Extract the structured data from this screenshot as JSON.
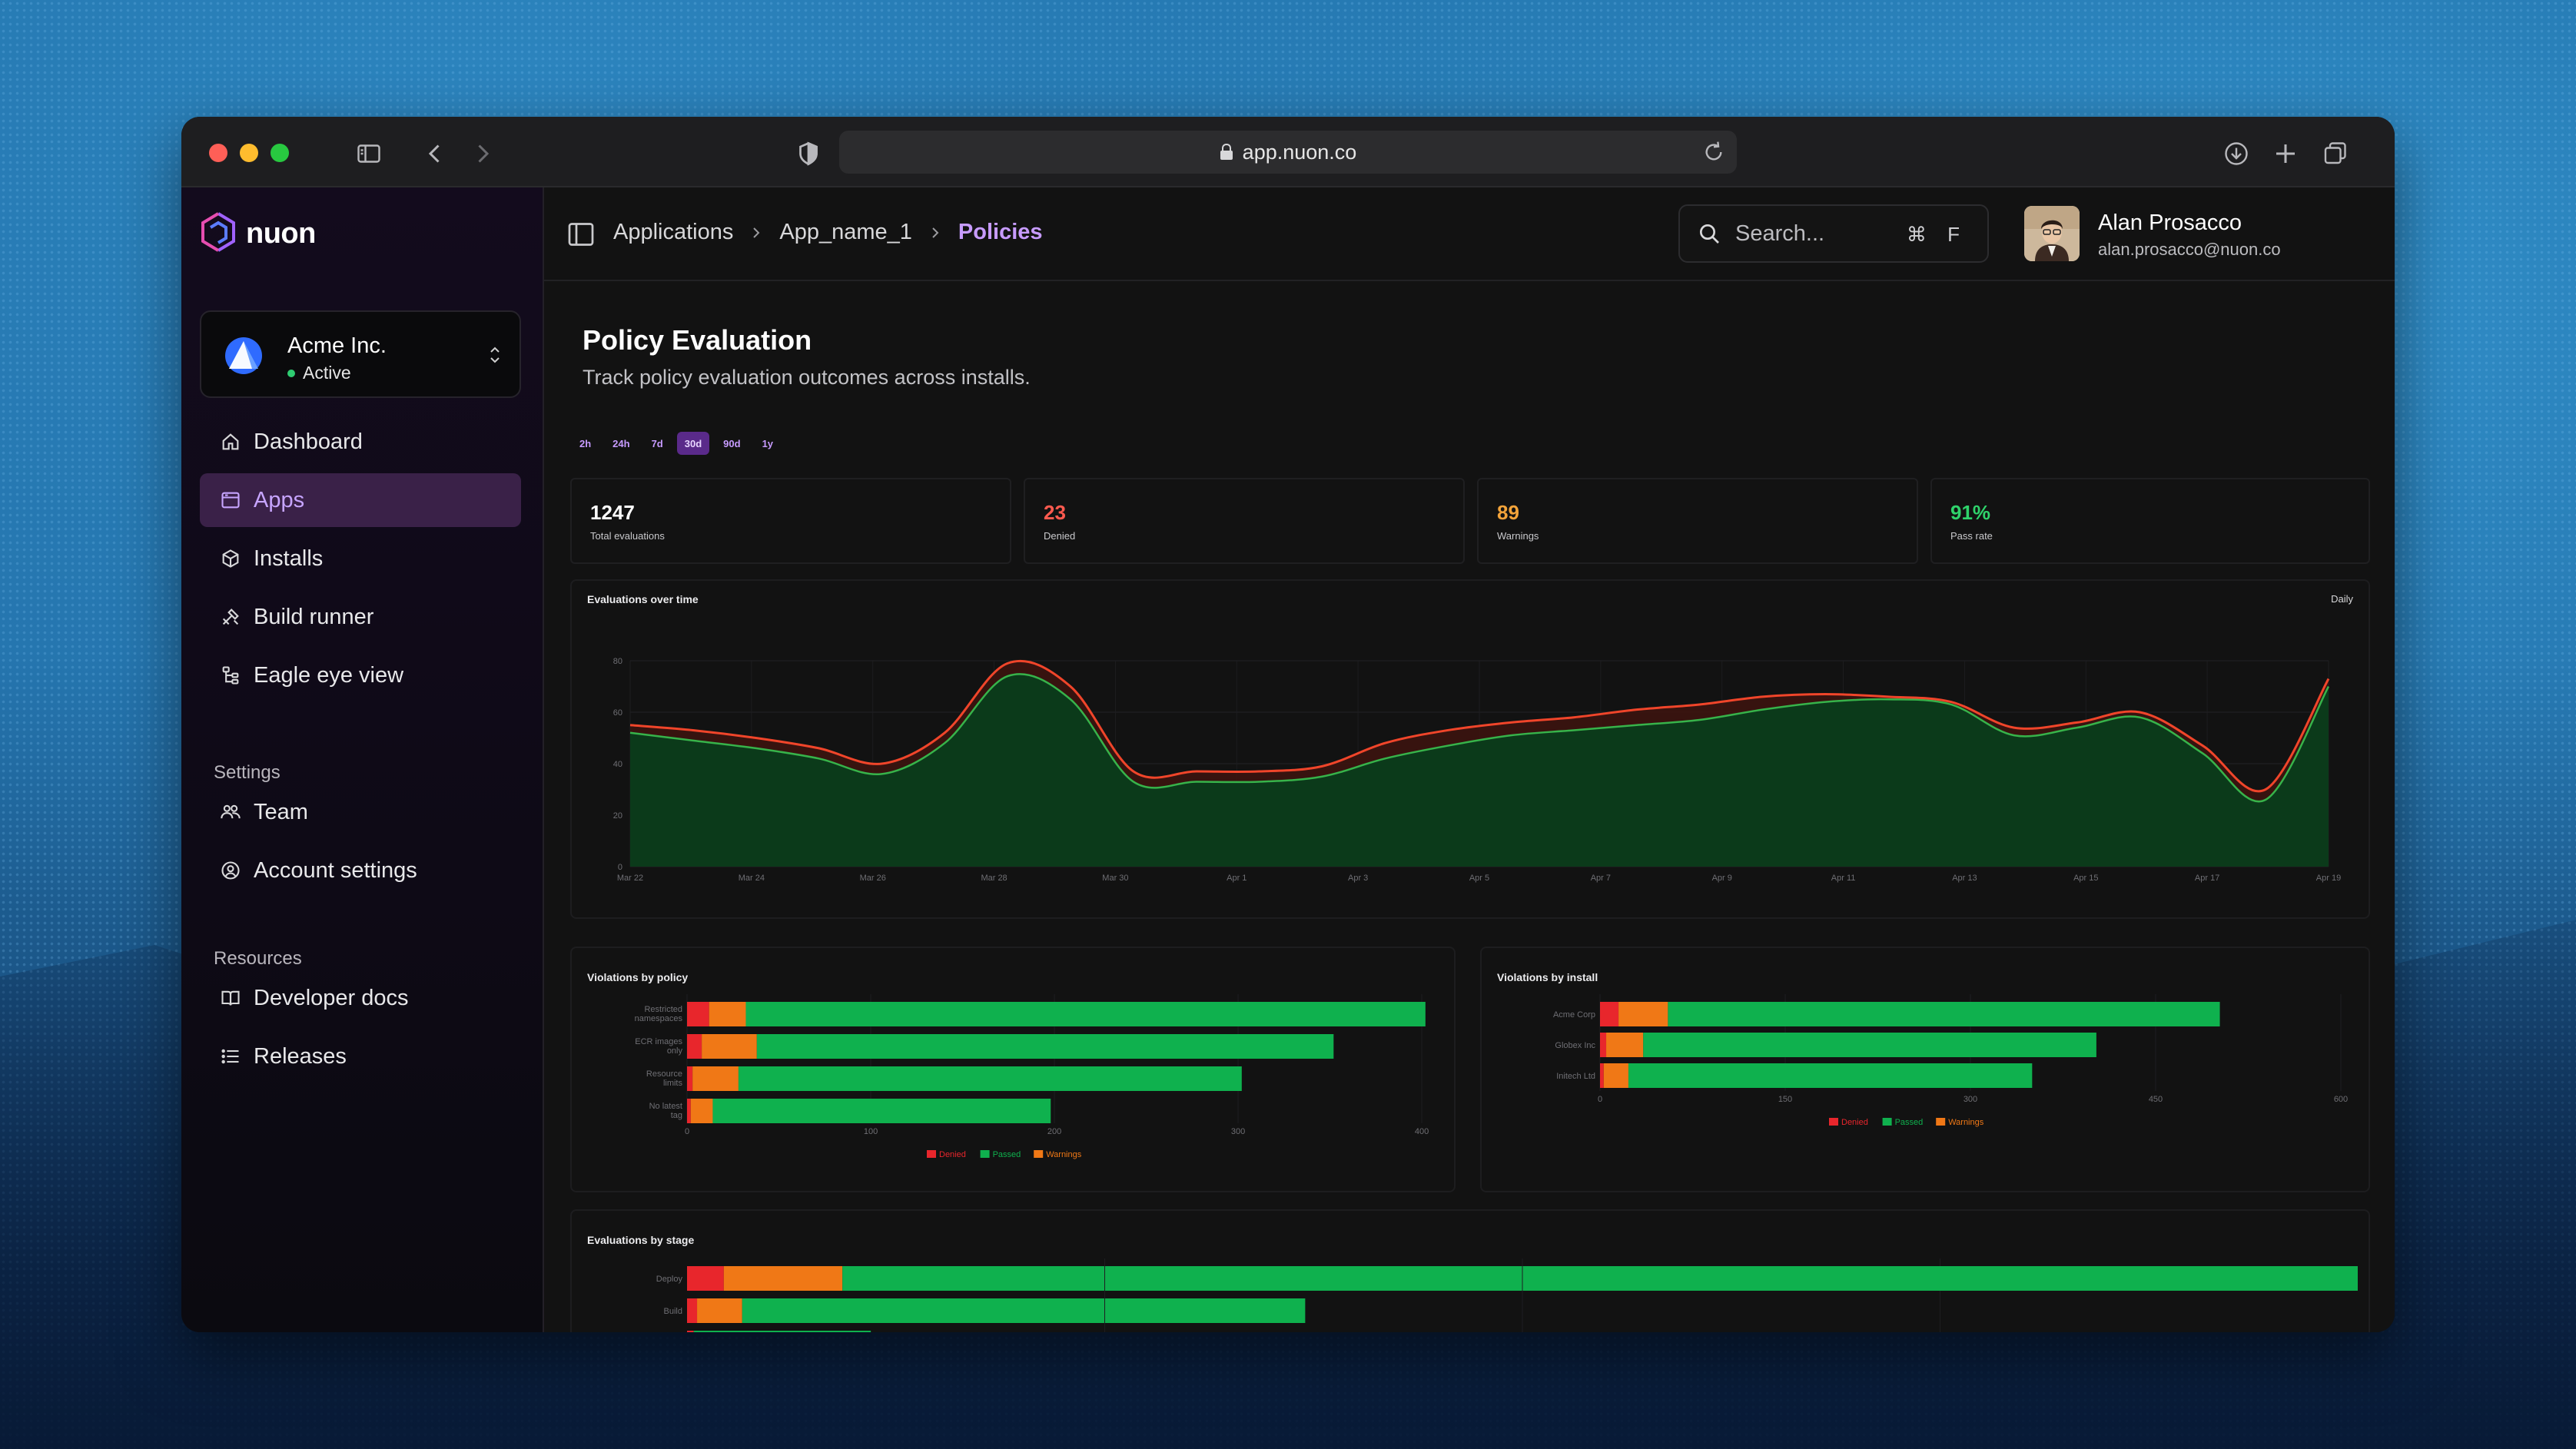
{
  "browser": {
    "url": "app.nuon.co"
  },
  "brand": {
    "name": "nuon"
  },
  "org": {
    "name": "Acme Inc.",
    "status": "Active"
  },
  "nav": {
    "main": [
      {
        "label": "Dashboard",
        "icon": "home-icon"
      },
      {
        "label": "Apps",
        "icon": "app-window-icon"
      },
      {
        "label": "Installs",
        "icon": "cube-icon"
      },
      {
        "label": "Build runner",
        "icon": "tools-icon"
      },
      {
        "label": "Eagle eye view",
        "icon": "tree-icon"
      }
    ],
    "settings_label": "Settings",
    "settings": [
      {
        "label": "Team",
        "icon": "team-icon"
      },
      {
        "label": "Account settings",
        "icon": "user-gear-icon"
      }
    ],
    "resources_label": "Resources",
    "resources": [
      {
        "label": "Developer docs",
        "icon": "book-icon"
      },
      {
        "label": "Releases",
        "icon": "list-icon"
      }
    ]
  },
  "breadcrumb": [
    "Applications",
    "App_name_1",
    "Policies"
  ],
  "search": {
    "placeholder": "Search...",
    "shortcut": "⌘ F"
  },
  "user": {
    "name": "Alan Prosacco",
    "email": "alan.prosacco@nuon.co"
  },
  "page": {
    "title": "Policy Evaluation",
    "subtitle": "Track policy evaluation outcomes across installs."
  },
  "ranges": {
    "options": [
      "2h",
      "24h",
      "7d",
      "30d",
      "90d",
      "1y"
    ],
    "selected": "30d"
  },
  "kpis": [
    {
      "value": "1247",
      "label": "Total evaluations",
      "color": "#ffffff"
    },
    {
      "value": "23",
      "label": "Denied",
      "color": "#ff5a4f"
    },
    {
      "value": "89",
      "label": "Warnings",
      "color": "#f2a33a"
    },
    {
      "value": "91%",
      "label": "Pass rate",
      "color": "#2fd36b"
    }
  ],
  "colors": {
    "denied": "#e8262c",
    "passed": "#0fb14e",
    "warnings": "#f07816"
  },
  "chart_data": [
    {
      "type": "area",
      "title": "Evaluations over time",
      "granularity": "Daily",
      "x": [
        "Mar 22",
        "Mar 23",
        "Mar 24",
        "Mar 25",
        "Mar 26",
        "Mar 27",
        "Mar 28",
        "Mar 29",
        "Mar 30",
        "Mar 31",
        "Apr 1",
        "Apr 2",
        "Apr 3",
        "Apr 4",
        "Apr 5",
        "Apr 6",
        "Apr 7",
        "Apr 8",
        "Apr 9",
        "Apr 10",
        "Apr 11",
        "Apr 12",
        "Apr 13",
        "Apr 14",
        "Apr 15",
        "Apr 16",
        "Apr 17",
        "Apr 18"
      ],
      "x_ticks": [
        "Mar 22",
        "Mar 24",
        "Mar 26",
        "Mar 28",
        "Mar 30",
        "Apr 1",
        "Apr 3",
        "Apr 5",
        "Apr 7",
        "Apr 9",
        "Apr 11",
        "Apr 13",
        "Apr 15",
        "Apr 17",
        "Apr 19"
      ],
      "y_ticks": [
        0,
        20,
        40,
        60,
        80
      ],
      "ylim": [
        0,
        80
      ],
      "series": [
        {
          "name": "Passed",
          "values": [
            52,
            49,
            46,
            42,
            36,
            48,
            74,
            65,
            33,
            33,
            33,
            35,
            42,
            47,
            51,
            53,
            55,
            57,
            61,
            64,
            65,
            63,
            51,
            54,
            58,
            44,
            26,
            70
          ]
        },
        {
          "name": "Total",
          "values": [
            55,
            53,
            50,
            46,
            40,
            52,
            79,
            70,
            37,
            37,
            37,
            39,
            48,
            53,
            56,
            58,
            61,
            63,
            66,
            67,
            66,
            64,
            54,
            56,
            60,
            47,
            30,
            73
          ]
        }
      ]
    },
    {
      "type": "bar",
      "title": "Violations by policy",
      "orientation": "horizontal",
      "stacked": true,
      "categories": [
        "Restricted namespaces",
        "ECR images only",
        "Resource limits",
        "No latest tag"
      ],
      "x_ticks": [
        0,
        100,
        200,
        300,
        400
      ],
      "xlim": [
        0,
        405
      ],
      "series": [
        {
          "name": "Denied",
          "values": [
            12,
            8,
            3,
            2
          ]
        },
        {
          "name": "Warnings",
          "values": [
            20,
            30,
            25,
            12
          ]
        },
        {
          "name": "Passed",
          "values": [
            370,
            314,
            274,
            184
          ]
        }
      ]
    },
    {
      "type": "bar",
      "title": "Violations by install",
      "orientation": "horizontal",
      "stacked": true,
      "categories": [
        "Acme Corp",
        "Globex Inc",
        "Initech Ltd"
      ],
      "x_ticks": [
        0,
        150,
        300,
        450,
        600
      ],
      "xlim": [
        0,
        600
      ],
      "series": [
        {
          "name": "Denied",
          "values": [
            15,
            5,
            3
          ]
        },
        {
          "name": "Warnings",
          "values": [
            40,
            30,
            20
          ]
        },
        {
          "name": "Passed",
          "values": [
            447,
            367,
            327
          ]
        }
      ]
    },
    {
      "type": "bar",
      "title": "Evaluations by stage",
      "orientation": "horizontal",
      "stacked": true,
      "categories": [
        "Deploy",
        "Build",
        ""
      ],
      "xlim": [
        0,
        1000
      ],
      "series": [
        {
          "name": "Denied",
          "values": [
            22,
            6,
            4
          ]
        },
        {
          "name": "Warnings",
          "values": [
            71,
            27,
            0
          ]
        },
        {
          "name": "Passed",
          "values": [
            907,
            337,
            106
          ]
        }
      ]
    }
  ]
}
